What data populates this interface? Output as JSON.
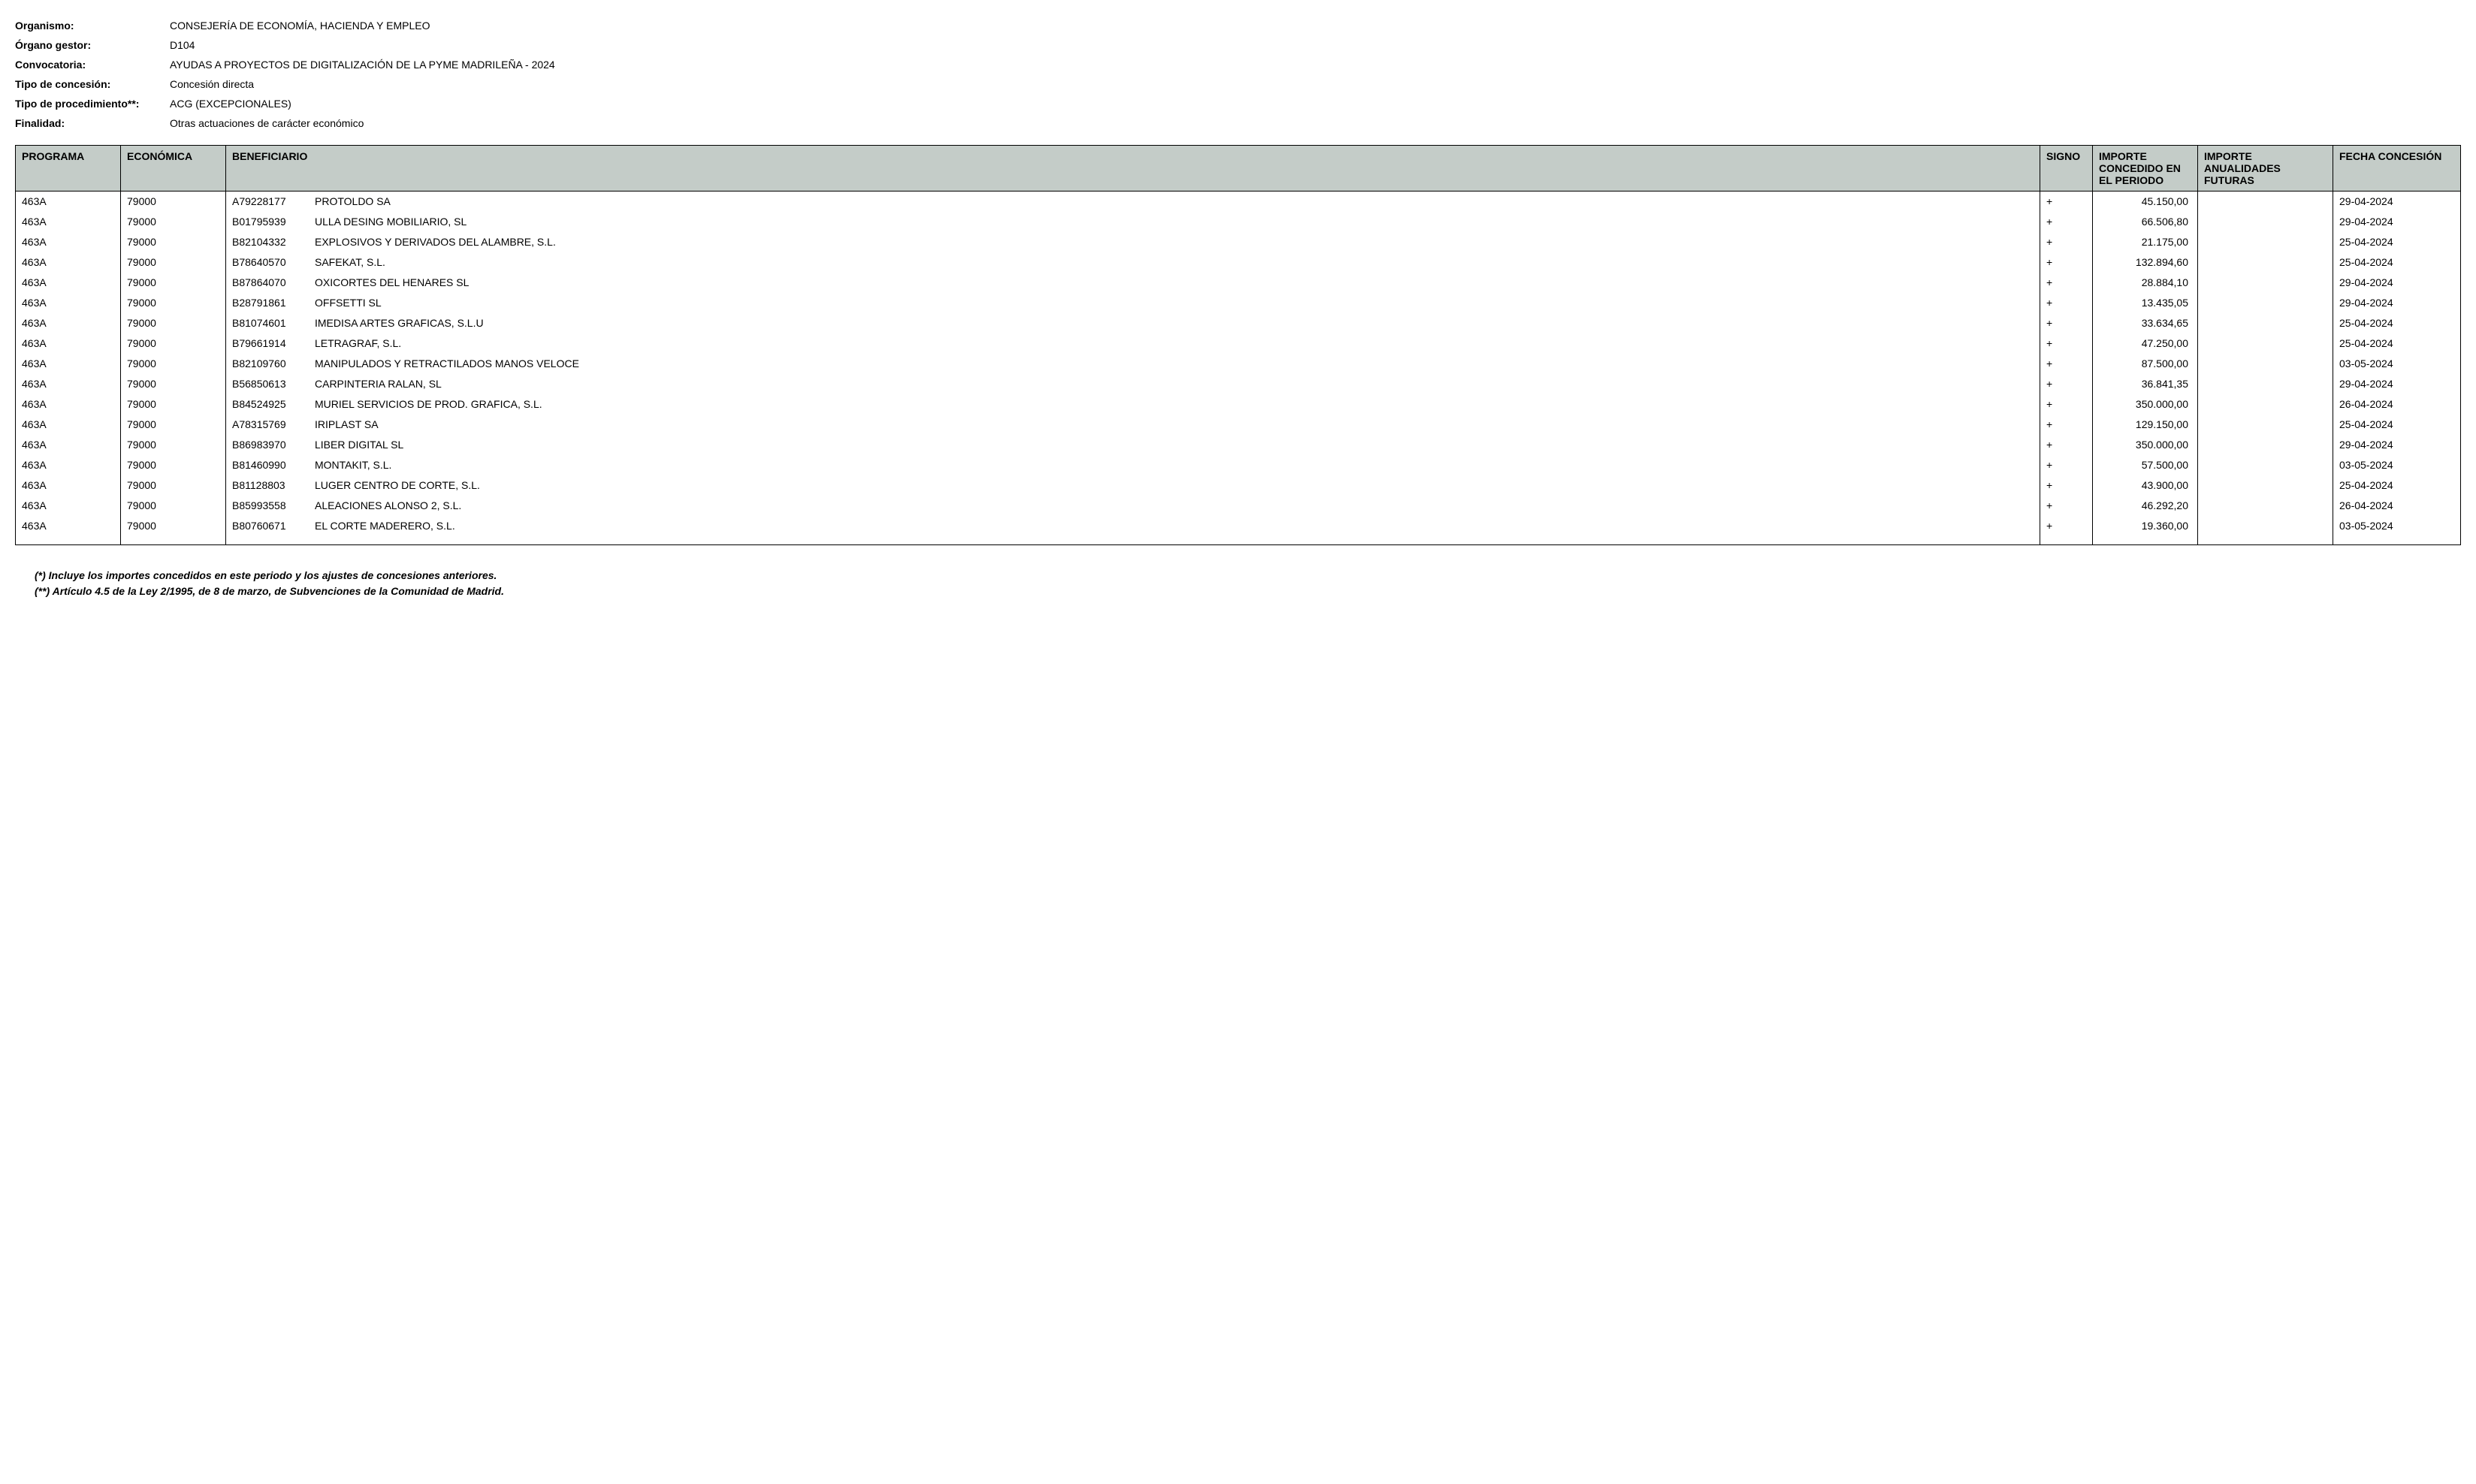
{
  "header": {
    "fields": [
      {
        "label": "Organismo:",
        "value": "CONSEJERÍA DE ECONOMÍA, HACIENDA Y EMPLEO"
      },
      {
        "label": "Órgano gestor:",
        "value": "D104"
      },
      {
        "label": "Convocatoria:",
        "value": "AYUDAS A PROYECTOS DE DIGITALIZACIÓN DE LA PYME MADRILEÑA - 2024"
      },
      {
        "label": "Tipo de concesión:",
        "value": "Concesión directa"
      },
      {
        "label": "Tipo de procedimiento**:",
        "value": "ACG (EXCEPCIONALES)"
      },
      {
        "label": "Finalidad:",
        "value": "Otras actuaciones de carácter económico"
      }
    ]
  },
  "table": {
    "columns": {
      "programa": "PROGRAMA",
      "economica": "ECONÓMICA",
      "beneficiario": "BENEFICIARIO",
      "signo": "SIGNO",
      "importe_periodo": "IMPORTE CONCEDIDO EN EL PERIODO",
      "importe_futuras": "IMPORTE ANUALIDADES FUTURAS",
      "fecha": "FECHA CONCESIÓN"
    },
    "rows": [
      {
        "programa": "463A",
        "economica": "79000",
        "nif": "A79228177",
        "nombre": "PROTOLDO SA",
        "signo": "+",
        "importe_periodo": "45.150,00",
        "importe_futuras": "",
        "fecha": "29-04-2024"
      },
      {
        "programa": "463A",
        "economica": "79000",
        "nif": "B01795939",
        "nombre": "ULLA DESING MOBILIARIO, SL",
        "signo": "+",
        "importe_periodo": "66.506,80",
        "importe_futuras": "",
        "fecha": "29-04-2024"
      },
      {
        "programa": "463A",
        "economica": "79000",
        "nif": "B82104332",
        "nombre": "EXPLOSIVOS Y DERIVADOS DEL ALAMBRE, S.L.",
        "signo": "+",
        "importe_periodo": "21.175,00",
        "importe_futuras": "",
        "fecha": "25-04-2024"
      },
      {
        "programa": "463A",
        "economica": "79000",
        "nif": "B78640570",
        "nombre": "SAFEKAT, S.L.",
        "signo": "+",
        "importe_periodo": "132.894,60",
        "importe_futuras": "",
        "fecha": "25-04-2024"
      },
      {
        "programa": "463A",
        "economica": "79000",
        "nif": "B87864070",
        "nombre": "OXICORTES DEL HENARES SL",
        "signo": "+",
        "importe_periodo": "28.884,10",
        "importe_futuras": "",
        "fecha": "29-04-2024"
      },
      {
        "programa": "463A",
        "economica": "79000",
        "nif": "B28791861",
        "nombre": "OFFSETTI SL",
        "signo": "+",
        "importe_periodo": "13.435,05",
        "importe_futuras": "",
        "fecha": "29-04-2024"
      },
      {
        "programa": "463A",
        "economica": "79000",
        "nif": "B81074601",
        "nombre": "IMEDISA ARTES GRAFICAS, S.L.U",
        "signo": "+",
        "importe_periodo": "33.634,65",
        "importe_futuras": "",
        "fecha": "25-04-2024"
      },
      {
        "programa": "463A",
        "economica": "79000",
        "nif": "B79661914",
        "nombre": "LETRAGRAF, S.L.",
        "signo": "+",
        "importe_periodo": "47.250,00",
        "importe_futuras": "",
        "fecha": "25-04-2024"
      },
      {
        "programa": "463A",
        "economica": "79000",
        "nif": "B82109760",
        "nombre": "MANIPULADOS Y RETRACTILADOS MANOS VELOCE",
        "signo": "+",
        "importe_periodo": "87.500,00",
        "importe_futuras": "",
        "fecha": "03-05-2024"
      },
      {
        "programa": "463A",
        "economica": "79000",
        "nif": "B56850613",
        "nombre": "CARPINTERIA RALAN, SL",
        "signo": "+",
        "importe_periodo": "36.841,35",
        "importe_futuras": "",
        "fecha": "29-04-2024"
      },
      {
        "programa": "463A",
        "economica": "79000",
        "nif": "B84524925",
        "nombre": "MURIEL SERVICIOS DE PROD. GRAFICA, S.L.",
        "signo": "+",
        "importe_periodo": "350.000,00",
        "importe_futuras": "",
        "fecha": "26-04-2024"
      },
      {
        "programa": "463A",
        "economica": "79000",
        "nif": "A78315769",
        "nombre": "IRIPLAST SA",
        "signo": "+",
        "importe_periodo": "129.150,00",
        "importe_futuras": "",
        "fecha": "25-04-2024"
      },
      {
        "programa": "463A",
        "economica": "79000",
        "nif": "B86983970",
        "nombre": "LIBER DIGITAL SL",
        "signo": "+",
        "importe_periodo": "350.000,00",
        "importe_futuras": "",
        "fecha": "29-04-2024"
      },
      {
        "programa": "463A",
        "economica": "79000",
        "nif": "B81460990",
        "nombre": "MONTAKIT, S.L.",
        "signo": "+",
        "importe_periodo": "57.500,00",
        "importe_futuras": "",
        "fecha": "03-05-2024"
      },
      {
        "programa": "463A",
        "economica": "79000",
        "nif": "B81128803",
        "nombre": "LUGER CENTRO DE CORTE, S.L.",
        "signo": "+",
        "importe_periodo": "43.900,00",
        "importe_futuras": "",
        "fecha": "25-04-2024"
      },
      {
        "programa": "463A",
        "economica": "79000",
        "nif": "B85993558",
        "nombre": "ALEACIONES ALONSO 2, S.L.",
        "signo": "+",
        "importe_periodo": "46.292,20",
        "importe_futuras": "",
        "fecha": "26-04-2024"
      },
      {
        "programa": "463A",
        "economica": "79000",
        "nif": "B80760671",
        "nombre": "EL CORTE MADERERO, S.L.",
        "signo": "+",
        "importe_periodo": "19.360,00",
        "importe_futuras": "",
        "fecha": "03-05-2024"
      }
    ]
  },
  "footer": {
    "note1": "(*) Incluye los importes concedidos en este periodo y los ajustes de concesiones anteriores.",
    "note2": "(**) Artículo 4.5 de la Ley 2/1995, de 8 de marzo, de Subvenciones de la Comunidad de Madrid."
  }
}
